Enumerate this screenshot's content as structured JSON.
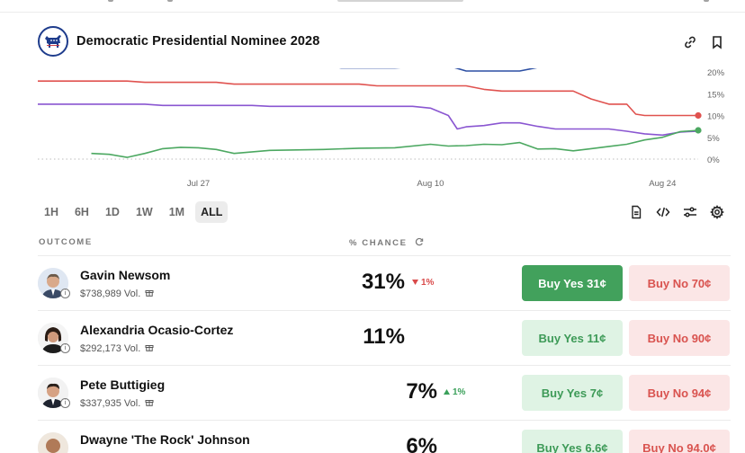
{
  "market": {
    "title": "Democratic Presidential Nominee 2028"
  },
  "icons": {
    "logo": "donkey-icon",
    "link": "link-icon",
    "bookmark": "bookmark-icon",
    "document": "document-icon",
    "embed": "code-icon",
    "filters": "sliders-icon",
    "settings": "gear-icon",
    "refresh": "refresh-icon",
    "gift": "gift-icon",
    "info": "info-icon"
  },
  "timeframes": [
    "1H",
    "6H",
    "1D",
    "1W",
    "1M",
    "ALL"
  ],
  "selected_timeframe": "ALL",
  "table": {
    "col_outcome": "OUTCOME",
    "col_chance": "% CHANCE"
  },
  "outcomes": [
    {
      "name": "Gavin Newsom",
      "volume": "$738,989 Vol.",
      "chance": "31%",
      "delta": "1%",
      "delta_dir": "down",
      "buy_yes": "Buy Yes 31¢",
      "buy_no": "Buy No 70¢"
    },
    {
      "name": "Alexandria Ocasio-Cortez",
      "volume": "$292,173 Vol.",
      "chance": "11%",
      "delta": "",
      "delta_dir": "none",
      "buy_yes": "Buy Yes 11¢",
      "buy_no": "Buy No 90¢"
    },
    {
      "name": "Pete Buttigieg",
      "volume": "$337,935 Vol.",
      "chance": "7%",
      "delta": "1%",
      "delta_dir": "up",
      "buy_yes": "Buy Yes 7¢",
      "buy_no": "Buy No 94¢"
    },
    {
      "name": "Dwayne 'The Rock' Johnson",
      "volume": "",
      "chance": "6%",
      "delta": "",
      "delta_dir": "none",
      "buy_yes": "Buy Yes 6.6¢",
      "buy_no": "Buy No 94.0¢"
    }
  ],
  "chart_data": {
    "type": "line",
    "x_tick_labels": [
      "Jul 27",
      "Aug 10",
      "Aug 24"
    ],
    "y_tick_labels": [
      "20%",
      "15%",
      "10%",
      "5%",
      "0%"
    ],
    "ylim": [
      0,
      20
    ],
    "y_axis_side": "right",
    "grid": false,
    "legend": "none",
    "colors": {
      "blue": "#2c4fa3",
      "red": "#e0524f",
      "purple": "#8a56d1",
      "green": "#4ca861"
    },
    "series": [
      {
        "color": "#2c4fa3",
        "points": [
          [
            0,
            22.3
          ],
          [
            5,
            22.3
          ],
          [
            6,
            22.1
          ],
          [
            8,
            22.1
          ],
          [
            10,
            21.9
          ],
          [
            13,
            21.9
          ],
          [
            15,
            21.6
          ],
          [
            16,
            21.6
          ],
          [
            17,
            20.9
          ],
          [
            20,
            20.9
          ],
          [
            22,
            21.4
          ],
          [
            23,
            21.4
          ],
          [
            24,
            20.2
          ],
          [
            27,
            20.2
          ],
          [
            28,
            21.0
          ],
          [
            28.5,
            21.2
          ]
        ]
      },
      {
        "color": "#e0524f",
        "points": [
          [
            0,
            17.9
          ],
          [
            5,
            17.9
          ],
          [
            6,
            17.6
          ],
          [
            10,
            17.6
          ],
          [
            11,
            17.2
          ],
          [
            18,
            17.2
          ],
          [
            19,
            16.8
          ],
          [
            24,
            16.8
          ],
          [
            25,
            16.0
          ],
          [
            26,
            15.6
          ],
          [
            30,
            15.6
          ],
          [
            31,
            13.8
          ],
          [
            32,
            12.6
          ],
          [
            33,
            12.6
          ],
          [
            33.5,
            10.3
          ],
          [
            34,
            10.0
          ],
          [
            37,
            10.0
          ]
        ]
      },
      {
        "color": "#8a56d1",
        "points": [
          [
            0,
            12.6
          ],
          [
            6,
            12.6
          ],
          [
            7,
            12.3
          ],
          [
            12,
            12.3
          ],
          [
            13,
            12.1
          ],
          [
            21,
            12.1
          ],
          [
            22,
            11.7
          ],
          [
            23,
            10.0
          ],
          [
            23.5,
            6.9
          ],
          [
            24,
            7.4
          ],
          [
            25,
            7.7
          ],
          [
            26,
            8.3
          ],
          [
            27,
            8.3
          ],
          [
            28,
            7.5
          ],
          [
            29,
            6.9
          ],
          [
            32,
            6.9
          ],
          [
            33,
            6.4
          ],
          [
            34,
            5.8
          ],
          [
            35,
            5.5
          ],
          [
            36,
            6.2
          ],
          [
            37,
            6.4
          ]
        ]
      },
      {
        "color": "#4ca861",
        "points": [
          [
            3,
            1.3
          ],
          [
            4,
            1.1
          ],
          [
            5,
            0.4
          ],
          [
            6,
            1.3
          ],
          [
            7,
            2.4
          ],
          [
            8,
            2.7
          ],
          [
            9,
            2.6
          ],
          [
            10,
            2.2
          ],
          [
            11,
            1.3
          ],
          [
            13,
            2.0
          ],
          [
            16,
            2.2
          ],
          [
            18,
            2.5
          ],
          [
            20,
            2.6
          ],
          [
            22,
            3.4
          ],
          [
            23,
            3.0
          ],
          [
            24,
            3.1
          ],
          [
            25,
            3.4
          ],
          [
            26,
            3.3
          ],
          [
            27,
            3.8
          ],
          [
            28,
            2.3
          ],
          [
            29,
            2.4
          ],
          [
            30,
            1.9
          ],
          [
            31,
            2.4
          ],
          [
            32,
            2.9
          ],
          [
            33,
            3.4
          ],
          [
            34,
            4.4
          ],
          [
            35,
            5.0
          ],
          [
            36,
            6.3
          ],
          [
            37,
            6.6
          ]
        ]
      }
    ]
  }
}
